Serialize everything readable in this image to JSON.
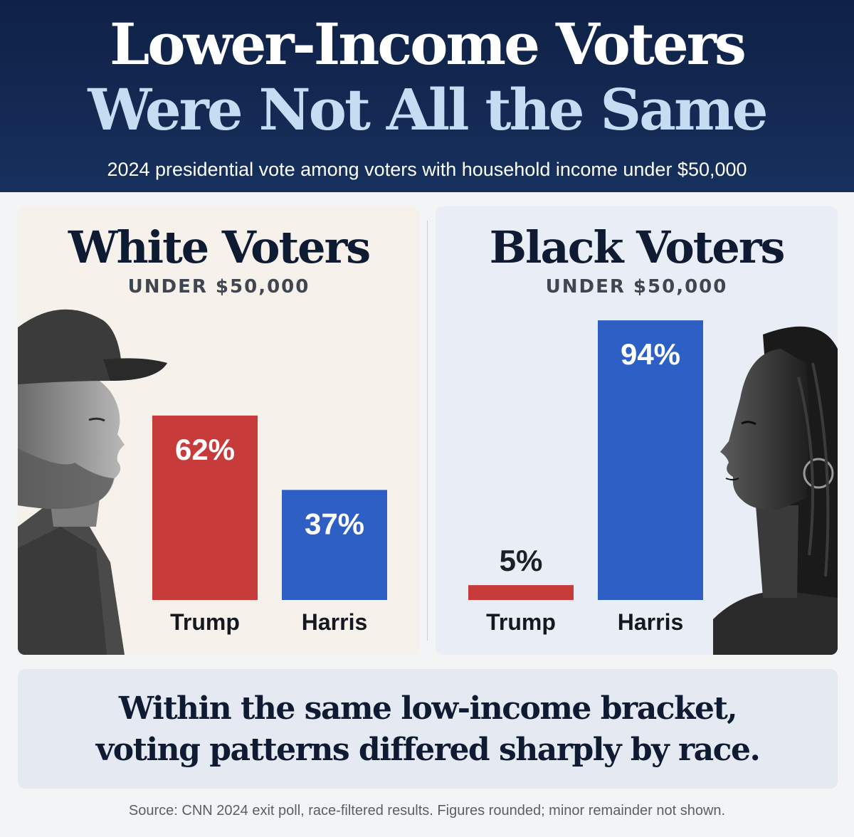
{
  "header": {
    "title_line1": "Lower-Income Voters",
    "title_line2": "Were Not All the Same",
    "subtitle": "2024 presidential vote among voters with household income under $50,000"
  },
  "chart_data": [
    {
      "type": "bar",
      "title": "White Voters",
      "subtitle": "UNDER $50,000",
      "categories": [
        "Trump",
        "Harris"
      ],
      "values": [
        62,
        37
      ],
      "value_labels": [
        "62%",
        "37%"
      ],
      "colors": [
        "#c83b3b",
        "#2e5fc4"
      ],
      "ylim": [
        0,
        100
      ]
    },
    {
      "type": "bar",
      "title": "Black Voters",
      "subtitle": "UNDER $50,000",
      "categories": [
        "Trump",
        "Harris"
      ],
      "values": [
        5,
        94
      ],
      "value_labels": [
        "5%",
        "94%"
      ],
      "colors": [
        "#c83b3b",
        "#2e5fc4"
      ],
      "ylim": [
        0,
        100
      ]
    }
  ],
  "conclusion": {
    "line1": "Within the same low-income bracket,",
    "line2": "voting patterns differed sharply by race."
  },
  "source": "Source: CNN 2024 exit poll, race-filtered results. Figures rounded; minor remainder not shown."
}
